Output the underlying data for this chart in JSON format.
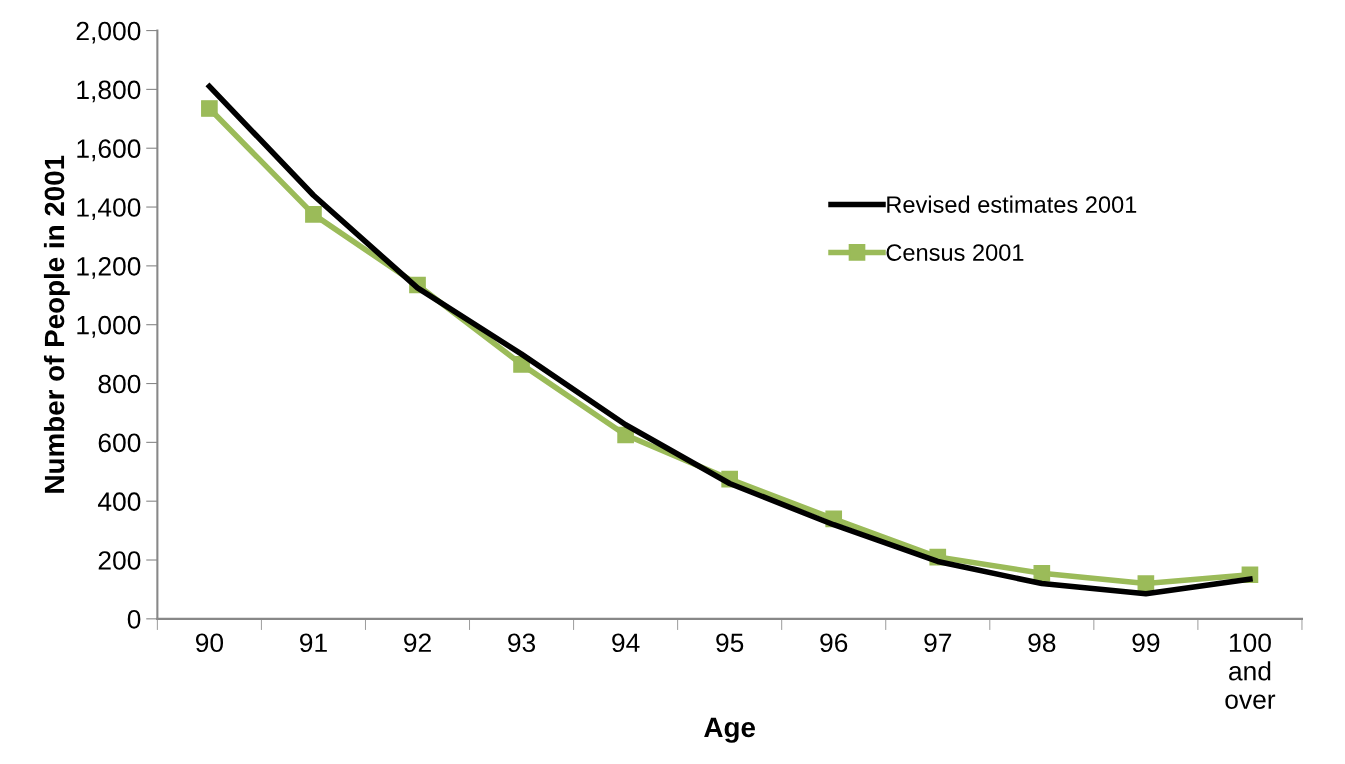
{
  "chart_data": {
    "type": "line",
    "xlabel": "Age",
    "ylabel": "Number of People in 2001",
    "categories": [
      "90",
      "91",
      "92",
      "93",
      "94",
      "95",
      "96",
      "97",
      "98",
      "99",
      "100\nand\nover"
    ],
    "series": [
      {
        "name": "Revised estimates 2001",
        "color": "#000000",
        "marker": "none",
        "values": [
          1810,
          1440,
          1125,
          900,
          660,
          460,
          320,
          195,
          120,
          85,
          135
        ]
      },
      {
        "name": "Census 2001",
        "color": "#9bbb59",
        "marker": "square",
        "values": [
          1735,
          1375,
          1135,
          865,
          625,
          475,
          340,
          210,
          155,
          120,
          150
        ]
      }
    ],
    "ylim": [
      0,
      2000
    ],
    "yticks": [
      {
        "value": 0,
        "label": "0"
      },
      {
        "value": 200,
        "label": "200"
      },
      {
        "value": 400,
        "label": "400"
      },
      {
        "value": 600,
        "label": "600"
      },
      {
        "value": 800,
        "label": "800"
      },
      {
        "value": 1000,
        "label": "1,000"
      },
      {
        "value": 1200,
        "label": "1,200"
      },
      {
        "value": 1400,
        "label": "1,400"
      },
      {
        "value": 1600,
        "label": "1,600"
      },
      {
        "value": 1800,
        "label": "1,800"
      },
      {
        "value": 2000,
        "label": "2,000"
      }
    ],
    "grid": false,
    "legend": "right",
    "line_style": "solid"
  }
}
